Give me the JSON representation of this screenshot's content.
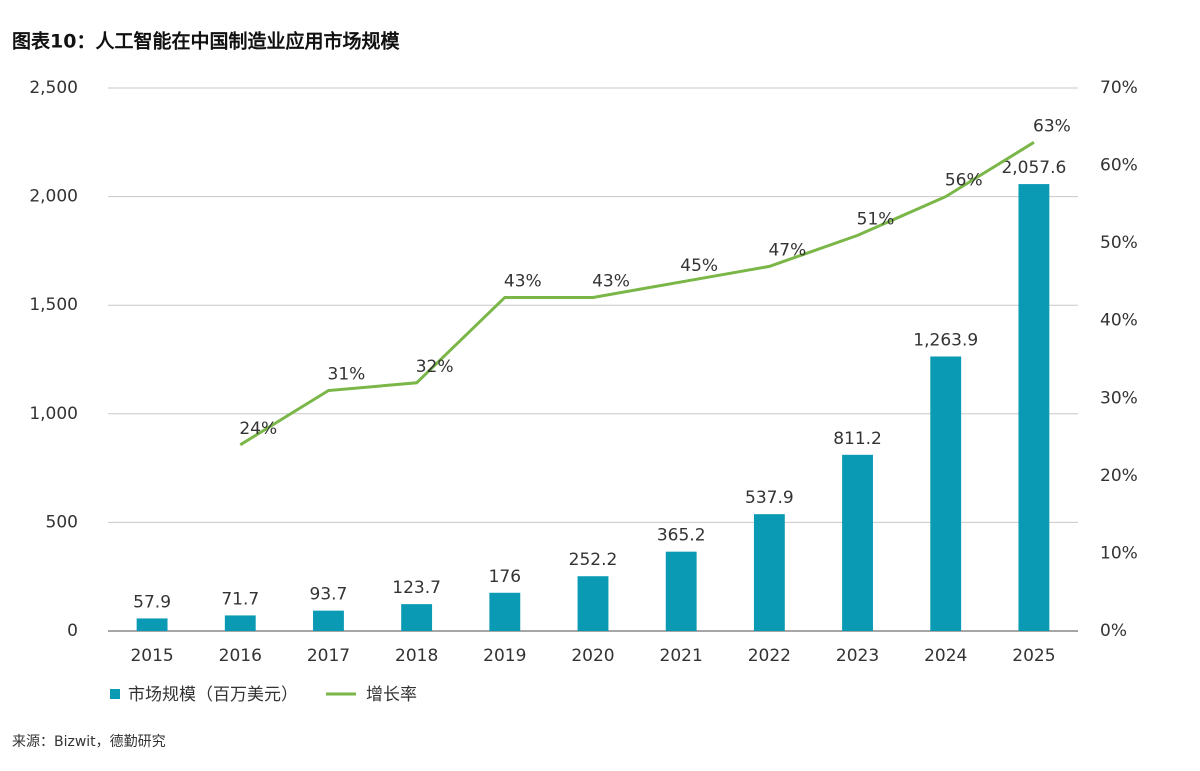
{
  "chart_data": {
    "type": "bar_line",
    "title": "图表10：人工智能在中国制造业应用市场规模",
    "source": "来源：Bizwit，德勤研究",
    "categories": [
      "2015",
      "2016",
      "2017",
      "2018",
      "2019",
      "2020",
      "2021",
      "2022",
      "2023",
      "2024",
      "2025"
    ],
    "series": [
      {
        "name": "市场规模（百万美元）",
        "type": "bar",
        "color": "#0a9ab3",
        "values": [
          57.9,
          71.7,
          93.7,
          123.7,
          176,
          252.2,
          365.2,
          537.9,
          811.2,
          1263.9,
          2057.6
        ],
        "value_labels": [
          "57.9",
          "71.7",
          "93.7",
          "123.7",
          "176",
          "252.2",
          "365.2",
          "537.9",
          "811.2",
          "1,263.9",
          "2,057.6"
        ]
      },
      {
        "name": "增长率",
        "type": "line",
        "axis": "y2",
        "color": "#7ab648",
        "values": [
          null,
          24,
          31,
          32,
          43,
          43,
          45,
          47,
          51,
          56,
          63
        ],
        "value_labels": [
          null,
          "24%",
          "31%",
          "32%",
          "43%",
          "43%",
          "45%",
          "47%",
          "51%",
          "56%",
          "63%"
        ]
      }
    ],
    "ylim": [
      0,
      2500
    ],
    "yticks": [
      0,
      500,
      {
        "value": 1000,
        "label": "1,000"
      },
      {
        "value": 1500,
        "label": "1,500"
      },
      {
        "value": 2000,
        "label": "2,000"
      },
      {
        "value": 2500,
        "label": "2,500"
      }
    ],
    "y2lim": [
      0,
      70
    ],
    "y2ticks": [
      {
        "value": 0,
        "label": "0%"
      },
      {
        "value": 10,
        "label": "10%"
      },
      {
        "value": 20,
        "label": "20%"
      },
      {
        "value": 30,
        "label": "30%"
      },
      {
        "value": 40,
        "label": "40%"
      },
      {
        "value": 50,
        "label": "50%"
      },
      {
        "value": 60,
        "label": "60%"
      },
      {
        "value": 70,
        "label": "70%"
      }
    ],
    "grid": true
  }
}
